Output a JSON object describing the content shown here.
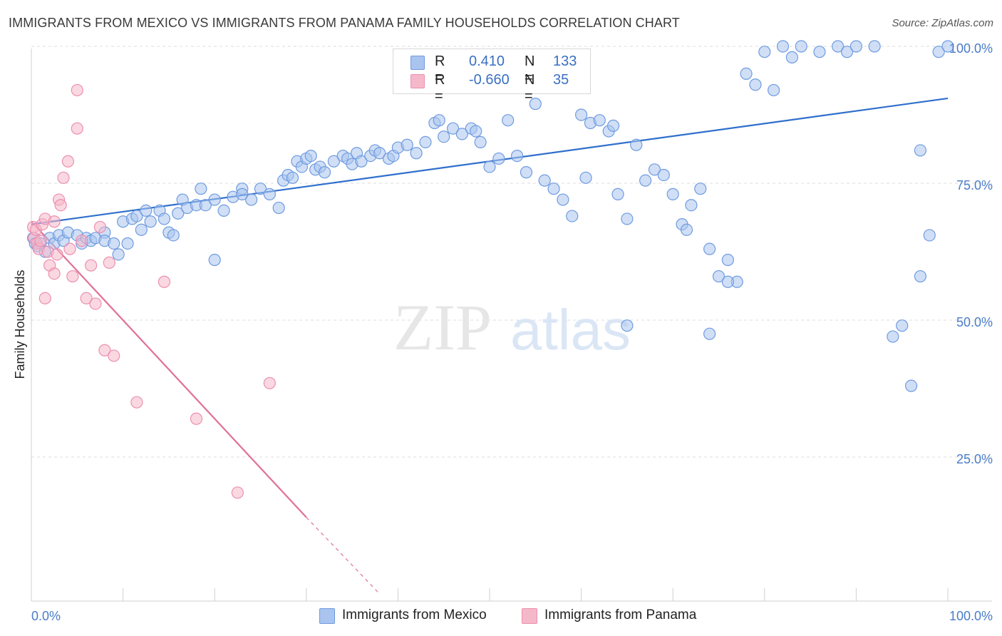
{
  "title": "IMMIGRANTS FROM MEXICO VS IMMIGRANTS FROM PANAMA FAMILY HOUSEHOLDS CORRELATION CHART",
  "source": "Source: ZipAtlas.com",
  "watermark": {
    "zip": "ZIP",
    "atlas": "atlas"
  },
  "legend": {
    "r_label": "R =",
    "n_label": "N =",
    "series": [
      {
        "r": "0.410",
        "n": "133"
      },
      {
        "r": "-0.660",
        "n": "35"
      }
    ]
  },
  "colors": {
    "mexico_fill": "#a9c4ee",
    "mexico_stroke": "#6f9be0",
    "mexico_line": "#2f6fcc",
    "panama_fill": "#f5b8cb",
    "panama_stroke": "#ec8fae",
    "panama_line": "#e0709a",
    "grid": "#dcdcdc",
    "tick_text": "#4a7cc8"
  },
  "chart_data": {
    "type": "scatter",
    "title": "IMMIGRANTS FROM MEXICO VS IMMIGRANTS FROM PANAMA FAMILY HOUSEHOLDS CORRELATION CHART",
    "xlabel": "",
    "ylabel": "Family Households",
    "xlim": [
      0,
      100
    ],
    "ylim": [
      0,
      100
    ],
    "x_tick_labels": [
      "0.0%",
      "100.0%"
    ],
    "y_tick_labels": [
      "25.0%",
      "50.0%",
      "75.0%",
      "100.0%"
    ],
    "y_ticks": [
      25,
      50,
      75,
      100
    ],
    "grid": true,
    "legend_position": "bottom",
    "series": [
      {
        "name": "Immigrants from Mexico",
        "r": 0.41,
        "n": 133,
        "trend": {
          "x0": 0,
          "y0": 67.5,
          "x1": 100,
          "y1": 90.5
        },
        "points": [
          [
            0.2,
            65
          ],
          [
            0.4,
            64
          ],
          [
            0.7,
            63.5
          ],
          [
            1.0,
            64
          ],
          [
            1.5,
            62.5
          ],
          [
            2.0,
            65
          ],
          [
            2.5,
            64
          ],
          [
            3,
            65.5
          ],
          [
            3.5,
            64.5
          ],
          [
            4,
            66
          ],
          [
            5,
            65.5
          ],
          [
            5.5,
            64
          ],
          [
            6,
            65
          ],
          [
            6.5,
            64.5
          ],
          [
            7,
            65
          ],
          [
            8,
            66
          ],
          [
            8,
            64.5
          ],
          [
            9,
            64
          ],
          [
            9.5,
            62
          ],
          [
            10,
            68
          ],
          [
            10.5,
            64
          ],
          [
            11,
            68.5
          ],
          [
            11.5,
            69
          ],
          [
            12,
            66.5
          ],
          [
            12.5,
            70
          ],
          [
            13,
            68
          ],
          [
            14,
            70
          ],
          [
            14.5,
            68.5
          ],
          [
            15,
            66
          ],
          [
            15.5,
            65.5
          ],
          [
            16,
            69.5
          ],
          [
            16.5,
            72
          ],
          [
            17,
            70.5
          ],
          [
            18,
            71
          ],
          [
            18.5,
            74
          ],
          [
            19,
            71
          ],
          [
            20,
            72
          ],
          [
            21,
            70
          ],
          [
            22,
            72.5
          ],
          [
            23,
            74
          ],
          [
            24,
            72
          ],
          [
            25,
            74
          ],
          [
            26,
            73
          ],
          [
            27,
            70.5
          ],
          [
            27.5,
            75.5
          ],
          [
            28,
            76.5
          ],
          [
            28.5,
            76
          ],
          [
            29,
            79
          ],
          [
            29.5,
            78
          ],
          [
            30,
            79.5
          ],
          [
            30.5,
            80
          ],
          [
            31,
            77.5
          ],
          [
            31.5,
            78
          ],
          [
            32,
            77
          ],
          [
            33,
            79
          ],
          [
            34,
            80
          ],
          [
            34.5,
            79.5
          ],
          [
            35,
            78.5
          ],
          [
            35.5,
            80.5
          ],
          [
            36,
            79
          ],
          [
            37,
            80
          ],
          [
            37.5,
            81
          ],
          [
            38,
            80.5
          ],
          [
            39,
            79.5
          ],
          [
            39.5,
            80
          ],
          [
            40,
            81.5
          ],
          [
            41,
            82
          ],
          [
            42,
            80.5
          ],
          [
            43,
            82.5
          ],
          [
            44,
            86
          ],
          [
            44.5,
            86.5
          ],
          [
            45,
            83.5
          ],
          [
            46,
            85
          ],
          [
            47,
            84
          ],
          [
            48,
            85
          ],
          [
            48.5,
            84.5
          ],
          [
            49,
            82.5
          ],
          [
            50,
            78
          ],
          [
            51,
            79.5
          ],
          [
            52,
            86.5
          ],
          [
            53,
            80
          ],
          [
            54,
            77
          ],
          [
            55,
            89.5
          ],
          [
            56,
            75.5
          ],
          [
            57,
            74
          ],
          [
            58,
            72
          ],
          [
            59,
            69
          ],
          [
            60,
            87.5
          ],
          [
            60.5,
            76
          ],
          [
            61,
            86
          ],
          [
            62,
            86.5
          ],
          [
            63,
            84.5
          ],
          [
            63.5,
            85.5
          ],
          [
            64,
            73
          ],
          [
            65,
            68.5
          ],
          [
            66,
            82
          ],
          [
            67,
            75.5
          ],
          [
            68,
            77.5
          ],
          [
            69,
            76.5
          ],
          [
            70,
            73
          ],
          [
            71,
            67.5
          ],
          [
            71.5,
            66.5
          ],
          [
            72,
            71
          ],
          [
            73,
            74
          ],
          [
            74,
            63
          ],
          [
            75,
            58
          ],
          [
            76,
            61
          ],
          [
            77,
            57
          ],
          [
            78,
            95
          ],
          [
            79,
            93
          ],
          [
            80,
            99
          ],
          [
            81,
            92
          ],
          [
            82,
            100
          ],
          [
            83,
            98
          ],
          [
            84,
            100
          ],
          [
            86,
            99
          ],
          [
            88,
            100
          ],
          [
            89,
            99
          ],
          [
            90,
            100
          ],
          [
            92,
            100
          ],
          [
            94,
            47
          ],
          [
            95,
            49
          ],
          [
            96,
            38
          ],
          [
            97,
            58
          ],
          [
            98,
            65.5
          ],
          [
            99,
            99
          ],
          [
            100,
            100
          ],
          [
            65,
            49
          ],
          [
            74,
            47.5
          ],
          [
            76,
            57
          ],
          [
            97,
            81
          ],
          [
            20,
            61
          ],
          [
            23,
            73
          ]
        ]
      },
      {
        "name": "Immigrants from Panama",
        "r": -0.66,
        "n": 35,
        "trend": {
          "x0": 0,
          "y0": 68,
          "x1": 30,
          "y1": 14,
          "dash_to_x": 38,
          "dash_to_y": 0
        },
        "points": [
          [
            0.2,
            67
          ],
          [
            0.3,
            65
          ],
          [
            0.5,
            66.5
          ],
          [
            0.6,
            64
          ],
          [
            0.8,
            63
          ],
          [
            1.0,
            64.5
          ],
          [
            1.2,
            67.5
          ],
          [
            1.5,
            68.5
          ],
          [
            1.8,
            62.5
          ],
          [
            2.0,
            60
          ],
          [
            2.5,
            58.5
          ],
          [
            2.5,
            68
          ],
          [
            2.8,
            62
          ],
          [
            3.0,
            72
          ],
          [
            3.2,
            71
          ],
          [
            3.5,
            76
          ],
          [
            4.0,
            79
          ],
          [
            4.2,
            63
          ],
          [
            4.5,
            58
          ],
          [
            5,
            85
          ],
          [
            5,
            92
          ],
          [
            5.5,
            64.5
          ],
          [
            6.0,
            54
          ],
          [
            6.5,
            60
          ],
          [
            7,
            53
          ],
          [
            7.5,
            67
          ],
          [
            8,
            44.5
          ],
          [
            8.5,
            60.5
          ],
          [
            9,
            43.5
          ],
          [
            11.5,
            35
          ],
          [
            14.5,
            57
          ],
          [
            18,
            32
          ],
          [
            22.5,
            18.5
          ],
          [
            26,
            38.5
          ],
          [
            1.5,
            54
          ]
        ]
      }
    ]
  }
}
